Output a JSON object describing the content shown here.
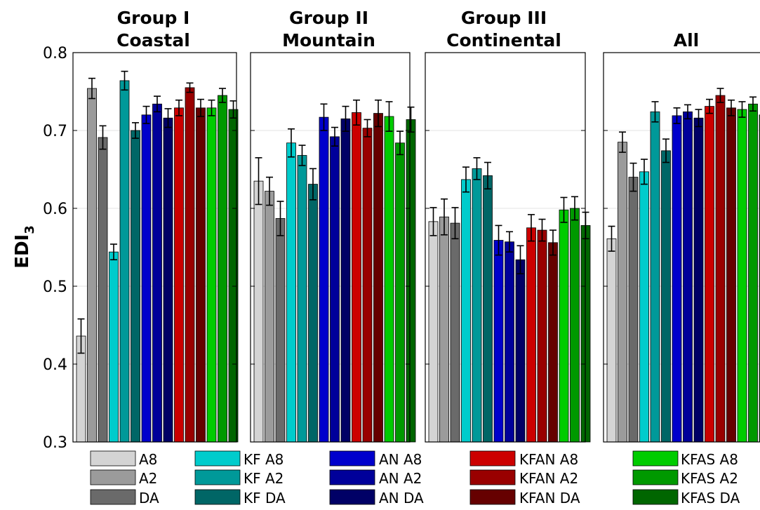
{
  "chart_data": {
    "type": "bar",
    "ylabel_main": "EDI",
    "ylabel_sub": "3",
    "ylim": [
      0.3,
      0.8
    ],
    "yticks": [
      0.3,
      0.4,
      0.5,
      0.6,
      0.7,
      0.8
    ],
    "grid": true,
    "legend_placement": "bottom",
    "series_names": [
      "A8",
      "A2",
      "DA",
      "KF A8",
      "KF A2",
      "KF DA",
      "AN A8",
      "AN A2",
      "AN DA",
      "KFAN A8",
      "KFAN A2",
      "KFAN DA",
      "KFAS A8",
      "KFAS A2",
      "KFAS DA"
    ],
    "series_colors": [
      "#d4d4d4",
      "#9b9b9b",
      "#6a6a6a",
      "#00cccc",
      "#009999",
      "#006666",
      "#0000cc",
      "#00009a",
      "#000066",
      "#cc0000",
      "#990000",
      "#660000",
      "#00cc00",
      "#009900",
      "#006600"
    ],
    "panels": [
      {
        "title_line1": "Group I",
        "title_line2": "Coastal",
        "values": [
          0.436,
          0.754,
          0.691,
          0.544,
          0.764,
          0.7,
          0.72,
          0.734,
          0.716,
          0.729,
          0.755,
          0.729,
          0.729,
          0.745,
          0.727
        ],
        "errors": [
          0.022,
          0.013,
          0.015,
          0.01,
          0.012,
          0.01,
          0.011,
          0.01,
          0.012,
          0.01,
          0.006,
          0.011,
          0.01,
          0.009,
          0.011
        ]
      },
      {
        "title_line1": "Group II",
        "title_line2": "Mountain",
        "values": [
          0.635,
          0.622,
          0.587,
          0.684,
          0.668,
          0.631,
          0.717,
          0.692,
          0.715,
          0.723,
          0.703,
          0.722,
          0.718,
          0.684,
          0.714
        ],
        "errors": [
          0.03,
          0.018,
          0.022,
          0.018,
          0.013,
          0.02,
          0.017,
          0.012,
          0.016,
          0.016,
          0.011,
          0.017,
          0.019,
          0.015,
          0.016
        ]
      },
      {
        "title_line1": "Group III",
        "title_line2": "Continental",
        "values": [
          0.583,
          0.589,
          0.581,
          0.637,
          0.651,
          0.642,
          0.559,
          0.557,
          0.534,
          0.575,
          0.572,
          0.556,
          0.598,
          0.6,
          0.578
        ],
        "errors": [
          0.018,
          0.023,
          0.02,
          0.016,
          0.014,
          0.017,
          0.019,
          0.013,
          0.018,
          0.017,
          0.014,
          0.016,
          0.016,
          0.015,
          0.017
        ]
      },
      {
        "title_line1": "",
        "title_line2": "All",
        "values": [
          0.561,
          0.685,
          0.64,
          0.647,
          0.724,
          0.674,
          0.719,
          0.724,
          0.716,
          0.731,
          0.745,
          0.729,
          0.727,
          0.734,
          0.72
        ],
        "errors": [
          0.016,
          0.013,
          0.018,
          0.016,
          0.013,
          0.015,
          0.01,
          0.009,
          0.011,
          0.009,
          0.009,
          0.01,
          0.01,
          0.009,
          0.012
        ]
      }
    ]
  }
}
